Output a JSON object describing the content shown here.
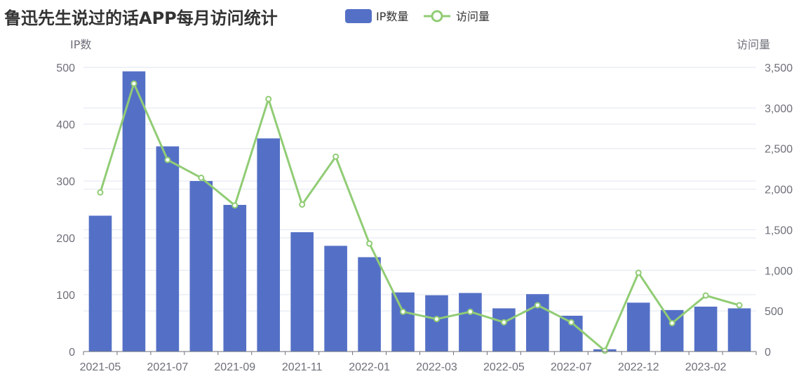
{
  "chart_data": {
    "type": "bar",
    "title": "鲁迅先生说过的话APP每月访问统计",
    "categories": [
      "2021-05",
      "2021-06",
      "2021-07",
      "2021-08",
      "2021-09",
      "2021-10",
      "2021-11",
      "2021-12",
      "2022-01",
      "2022-02",
      "2022-03",
      "2022-04",
      "2022-05",
      "2022-06",
      "2022-07",
      "2022-09",
      "2022-12",
      "2023-01",
      "2023-02",
      "2023-03"
    ],
    "x_tick_labels": [
      "2021-05",
      "2021-07",
      "2021-09",
      "2021-11",
      "2022-01",
      "2022-03",
      "2022-05",
      "2022-07",
      "2022-12",
      "2023-02"
    ],
    "series": [
      {
        "name": "IP数量",
        "type": "bar",
        "axis": "left",
        "color": "#5470c6",
        "values": [
          239,
          493,
          361,
          300,
          258,
          375,
          210,
          186,
          166,
          104,
          99,
          103,
          76,
          101,
          63,
          4,
          86,
          73,
          79,
          76
        ]
      },
      {
        "name": "访问量",
        "type": "line",
        "axis": "right",
        "color": "#91cc75",
        "values": [
          1960,
          3300,
          2360,
          2140,
          1800,
          3110,
          1810,
          2400,
          1330,
          490,
          400,
          490,
          360,
          570,
          360,
          10,
          970,
          350,
          690,
          570
        ]
      }
    ],
    "y_left": {
      "label": "IP数",
      "range": [
        0,
        500
      ],
      "ticks": [
        "0",
        "100",
        "200",
        "300",
        "400",
        "500"
      ]
    },
    "y_right": {
      "label": "访问量",
      "range": [
        0,
        3500
      ],
      "ticks": [
        "0",
        "500",
        "1,000",
        "1,500",
        "2,000",
        "2,500",
        "3,000",
        "3,500"
      ]
    },
    "grid": true,
    "legend_position": "top"
  }
}
